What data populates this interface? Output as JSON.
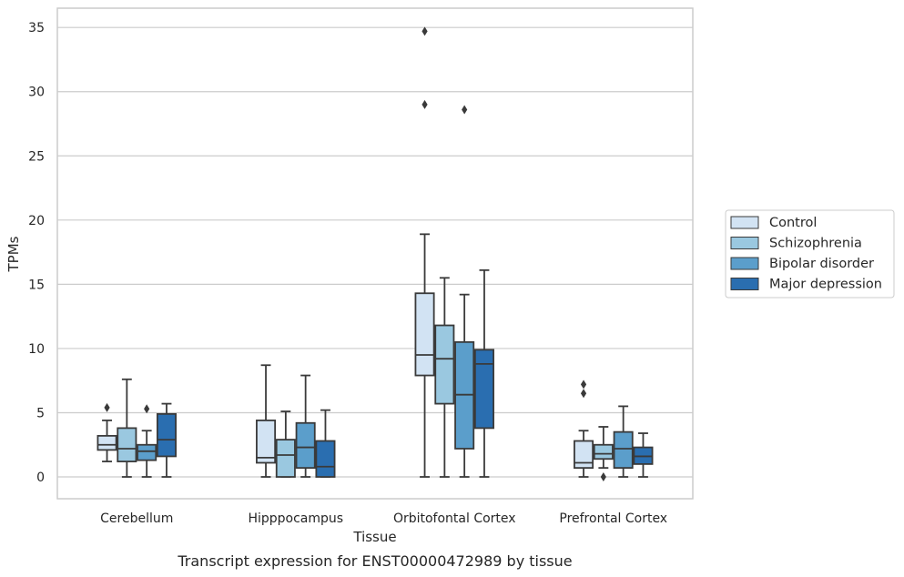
{
  "caption": "Transcript expression for ENST00000472989 by tissue",
  "chart_data": {
    "type": "box",
    "xlabel": "Tissue",
    "ylabel": "TPMs",
    "ylim": [
      -1.7,
      36.5
    ],
    "yticks": [
      0,
      5,
      10,
      15,
      20,
      25,
      30,
      35
    ],
    "grid": "horizontal",
    "legend_position": "right",
    "categories": [
      "Cerebellum",
      "Hipppocampus",
      "Orbitofontal Cortex",
      "Prefrontal Cortex"
    ],
    "series": [
      {
        "name": "Control",
        "color": "#d2e3f3",
        "boxes": [
          {
            "q1": 2.1,
            "median": 2.5,
            "q3": 3.2,
            "whisker_low": 1.2,
            "whisker_high": 4.4,
            "outliers": [
              5.4
            ]
          },
          {
            "q1": 1.1,
            "median": 1.5,
            "q3": 4.4,
            "whisker_low": 0.0,
            "whisker_high": 8.7,
            "outliers": []
          },
          {
            "q1": 7.9,
            "median": 9.5,
            "q3": 14.3,
            "whisker_low": 0.0,
            "whisker_high": 18.9,
            "outliers": [
              29.0,
              34.7
            ]
          },
          {
            "q1": 0.7,
            "median": 1.1,
            "q3": 2.8,
            "whisker_low": 0.0,
            "whisker_high": 3.6,
            "outliers": [
              6.5,
              7.2
            ]
          }
        ]
      },
      {
        "name": "Schizophrenia",
        "color": "#9ac8e0",
        "boxes": [
          {
            "q1": 1.2,
            "median": 2.2,
            "q3": 3.8,
            "whisker_low": 0.0,
            "whisker_high": 7.6,
            "outliers": []
          },
          {
            "q1": 0.0,
            "median": 1.7,
            "q3": 2.9,
            "whisker_low": 0.0,
            "whisker_high": 5.1,
            "outliers": []
          },
          {
            "q1": 5.7,
            "median": 9.2,
            "q3": 11.8,
            "whisker_low": 0.0,
            "whisker_high": 15.5,
            "outliers": []
          },
          {
            "q1": 1.4,
            "median": 1.8,
            "q3": 2.5,
            "whisker_low": 0.7,
            "whisker_high": 3.9,
            "outliers": [
              0.0
            ]
          }
        ]
      },
      {
        "name": "Bipolar disorder",
        "color": "#5b9ecb",
        "boxes": [
          {
            "q1": 1.3,
            "median": 2.0,
            "q3": 2.5,
            "whisker_low": 0.0,
            "whisker_high": 3.6,
            "outliers": [
              5.3
            ]
          },
          {
            "q1": 0.7,
            "median": 2.3,
            "q3": 4.2,
            "whisker_low": 0.0,
            "whisker_high": 7.9,
            "outliers": []
          },
          {
            "q1": 2.2,
            "median": 6.4,
            "q3": 10.5,
            "whisker_low": 0.0,
            "whisker_high": 14.2,
            "outliers": [
              28.6
            ]
          },
          {
            "q1": 0.7,
            "median": 2.2,
            "q3": 3.5,
            "whisker_low": 0.0,
            "whisker_high": 5.5,
            "outliers": []
          }
        ]
      },
      {
        "name": "Major depression",
        "color": "#2a6eb0",
        "boxes": [
          {
            "q1": 1.6,
            "median": 2.9,
            "q3": 4.9,
            "whisker_low": 0.0,
            "whisker_high": 5.7,
            "outliers": []
          },
          {
            "q1": 0.0,
            "median": 0.8,
            "q3": 2.8,
            "whisker_low": 0.0,
            "whisker_high": 5.2,
            "outliers": []
          },
          {
            "q1": 3.8,
            "median": 8.8,
            "q3": 9.9,
            "whisker_low": 0.0,
            "whisker_high": 16.1,
            "outliers": []
          },
          {
            "q1": 1.0,
            "median": 1.6,
            "q3": 2.3,
            "whisker_low": 0.0,
            "whisker_high": 3.4,
            "outliers": []
          }
        ]
      }
    ]
  }
}
